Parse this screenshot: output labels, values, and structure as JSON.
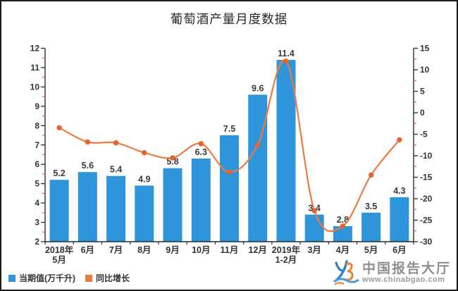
{
  "watermark": {
    "brand": "中国报告大厅",
    "url": "www.chinabgao.com",
    "logo": "chinabgao-logo"
  },
  "colors": {
    "bar": "#2E95DB",
    "line": "#ED7A40",
    "marker": "#E4632E",
    "axis": "#2b2b2b",
    "minor_tick": "#D95F4B",
    "text": "#333333",
    "watermark_gray": "#8f8f8f"
  },
  "chart_data": {
    "type": "bar+line combo",
    "title": "葡萄酒产量月度数据",
    "categories": [
      "2018年\n5月",
      "6月",
      "7月",
      "8月",
      "9月",
      "10月",
      "11月",
      "12月",
      "2019年\n1-2月",
      "3月",
      "4月",
      "5月",
      "6月"
    ],
    "series": [
      {
        "name": "当期值(万千升)",
        "type": "bar",
        "axis": "left",
        "color": "#2E95DB",
        "values": [
          5.2,
          5.6,
          5.4,
          4.9,
          5.8,
          6.3,
          7.5,
          9.6,
          11.4,
          3.4,
          2.8,
          3.5,
          4.3
        ],
        "data_labels_visible": true
      },
      {
        "name": "同比增长",
        "type": "line",
        "axis": "right",
        "color": "#ED7A40",
        "values": [
          -3.5,
          -6.8,
          -7.0,
          -9.3,
          -10.5,
          -7.2,
          -13.8,
          -7.5,
          12.0,
          -22.8,
          -26.4,
          -14.5,
          -6.3
        ],
        "data_labels_visible": false,
        "smooth": true,
        "markers": "circle"
      }
    ],
    "left_axis": {
      "min": 2,
      "max": 12,
      "step": 1,
      "minor_step": 0.5
    },
    "right_axis": {
      "min": -30,
      "max": 15,
      "step": 5,
      "minor_step": 2.5
    },
    "grid": false,
    "legend_position": "bottom-left"
  }
}
